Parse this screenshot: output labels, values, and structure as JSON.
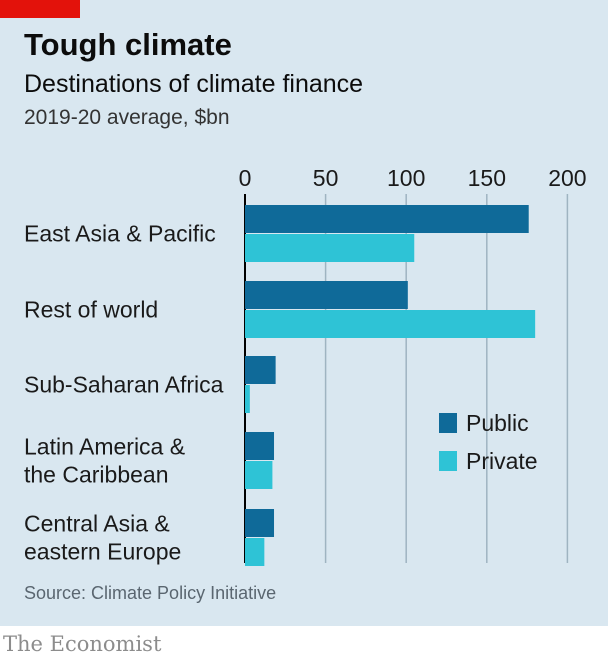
{
  "header": {
    "title": "Tough climate",
    "subtitle": "Destinations of climate finance",
    "units": "2019-20 average, $bn"
  },
  "footer": {
    "source": "Source: Climate Policy Initiative",
    "brand": "The Economist"
  },
  "colors": {
    "public": "#0f6a99",
    "private": "#2ec3d6",
    "grid": "#9fb4c1",
    "axis": "#000000",
    "accent": "#e3120b"
  },
  "chart_data": {
    "type": "bar",
    "orientation": "horizontal",
    "categories": [
      [
        "East Asia & Pacific"
      ],
      [
        "Rest of world"
      ],
      [
        "Sub-Saharan Africa"
      ],
      [
        "Latin America &",
        "the Caribbean"
      ],
      [
        "Central Asia &",
        "eastern Europe"
      ]
    ],
    "series": [
      {
        "name": "Public",
        "values": [
          176,
          101,
          19,
          18,
          18
        ]
      },
      {
        "name": "Private",
        "values": [
          105,
          180,
          3,
          17,
          12
        ]
      }
    ],
    "xlim": [
      0,
      200
    ],
    "xticks": [
      "0",
      "50",
      "100",
      "150",
      "200"
    ],
    "grid": true,
    "legend_position": "right"
  }
}
